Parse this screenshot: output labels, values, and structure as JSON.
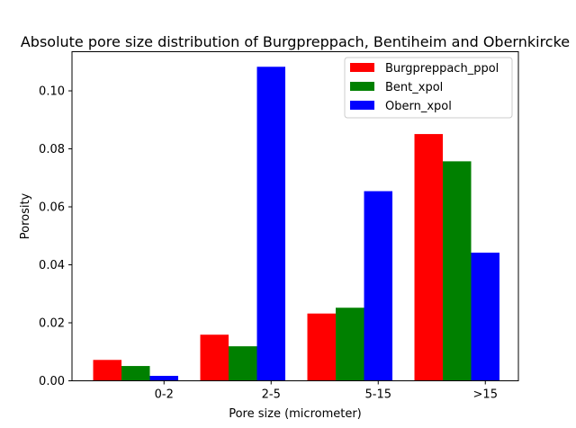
{
  "chart_data": {
    "type": "bar",
    "title": "Absolute pore size distribution of Burgpreppach, Bentiheim and Obernkircke",
    "xlabel": "Pore size (micrometer)",
    "ylabel": "Porosity",
    "categories": [
      "0-2",
      "2-5",
      "5-15",
      ">15"
    ],
    "series": [
      {
        "name": "Burgpreppach_ppol",
        "color": "#ff0000",
        "values": [
          0.0072,
          0.0159,
          0.0232,
          0.0851
        ]
      },
      {
        "name": "Bent_xpol",
        "color": "#008000",
        "values": [
          0.0051,
          0.0119,
          0.0252,
          0.0757
        ]
      },
      {
        "name": "Obern_xpol",
        "color": "#0000ff",
        "values": [
          0.0017,
          0.1083,
          0.0654,
          0.0442
        ]
      }
    ],
    "ylim": [
      0,
      0.1135
    ],
    "yticks": [
      "0.00",
      "0.02",
      "0.04",
      "0.06",
      "0.08",
      "0.10"
    ],
    "grid": false,
    "legend_position": "top-right"
  }
}
